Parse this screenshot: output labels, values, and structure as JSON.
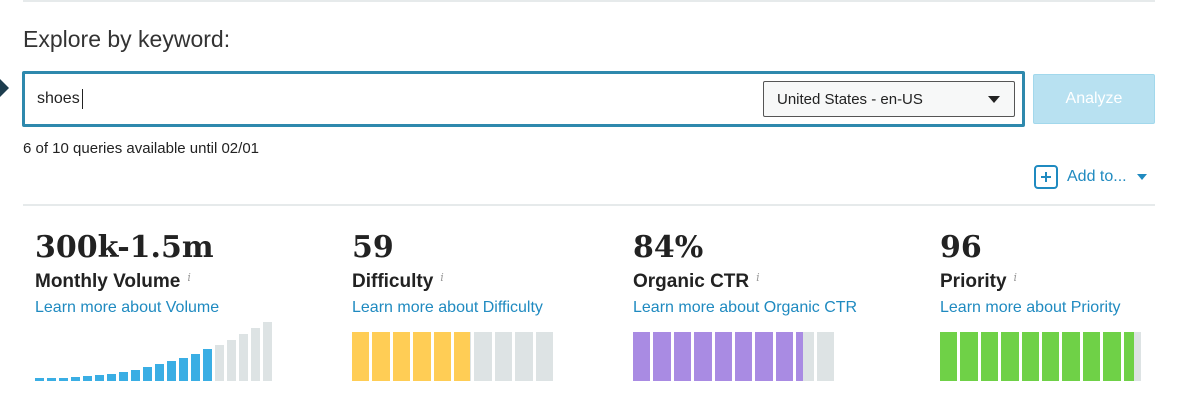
{
  "page": {
    "title": "Explore by keyword:"
  },
  "search": {
    "value": "shoes",
    "locale": "United States - en-US",
    "analyze_label": "Analyze",
    "quota_text": "6 of 10 queries available until 02/01"
  },
  "add_to": {
    "label": "Add to..."
  },
  "colors": {
    "accent": "#1f8ac0",
    "volume": "#3aaee4",
    "difficulty": "#ffcd55",
    "ctr": "#a98be3",
    "priority": "#6fd147",
    "empty": "#dde3e4"
  },
  "metrics": [
    {
      "value": "300k-1.5m",
      "name": "Monthly Volume",
      "info": "i",
      "link": "Learn more about Volume",
      "filled_bars": 15,
      "total_bars": 20
    },
    {
      "value": "59",
      "name": "Difficulty",
      "info": "i",
      "link": "Learn more about Difficulty",
      "score": 59,
      "max": 100
    },
    {
      "value": "84%",
      "name": "Organic CTR",
      "info": "i",
      "link": "Learn more about Organic CTR",
      "score": 84,
      "max": 100
    },
    {
      "value": "96",
      "name": "Priority",
      "info": "i",
      "link": "Learn more about Priority",
      "score": 96,
      "max": 100
    }
  ]
}
